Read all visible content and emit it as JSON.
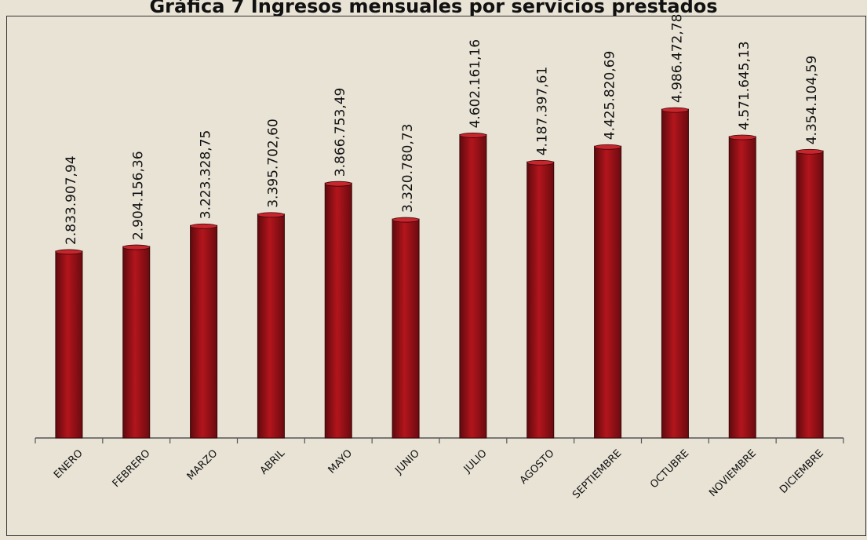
{
  "chart_data": {
    "type": "bar",
    "title": "Gráfica 7 Ingresos mensuales por servicios prestados",
    "categories": [
      "ENERO",
      "FEBRERO",
      "MARZO",
      "ABRIL",
      "MAYO",
      "JUNIO",
      "JULIO",
      "AGOSTO",
      "SEPTIEMBRE",
      "OCTUBRE",
      "NOVIEMBRE",
      "DICIEMBRE"
    ],
    "values": [
      2833907.94,
      2904156.36,
      3223328.75,
      3395702.6,
      3866753.49,
      3320780.73,
      4602161.16,
      4187397.61,
      4425820.69,
      4986472.78,
      4571645.13,
      4354104.59
    ],
    "value_labels": [
      "2.833.907,94",
      "2.904.156,36",
      "3.223.328,75",
      "3.395.702,60",
      "3.866.753,49",
      "3.320.780,73",
      "4.602.161,16",
      "4.187.397,61",
      "4.425.820,69",
      "4.986.472,78",
      "4.571.645,13",
      "4.354.104,59"
    ],
    "ylim": [
      0,
      5000000
    ],
    "grid": false,
    "legend": "none",
    "bar_color": "#a8121a"
  }
}
